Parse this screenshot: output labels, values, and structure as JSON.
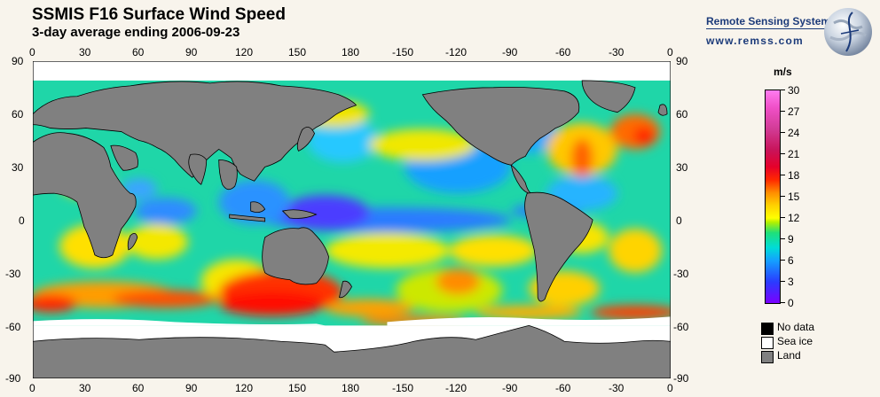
{
  "title": "SSMIS F16 Surface Wind Speed",
  "subtitle": "3-day average ending 2006-09-23",
  "branding": {
    "name": "Remote Sensing Systems",
    "url": "www.remss.com"
  },
  "lon_ticks": [
    "0",
    "30",
    "60",
    "90",
    "120",
    "150",
    "180",
    "-150",
    "-120",
    "-90",
    "-60",
    "-30",
    "0"
  ],
  "lat_ticks": [
    "90",
    "60",
    "30",
    "0",
    "-30",
    "-60",
    "-90"
  ],
  "colorbar": {
    "unit": "m/s",
    "ticks": [
      "0",
      "3",
      "6",
      "9",
      "12",
      "15",
      "18",
      "21",
      "24",
      "27",
      "30"
    ],
    "min": 0,
    "max": 30
  },
  "legend": [
    {
      "label": "No data",
      "color": "#000000"
    },
    {
      "label": "Sea ice",
      "color": "#ffffff"
    },
    {
      "label": "Land",
      "color": "#808080"
    }
  ],
  "colors": {
    "land": "#808080",
    "sea_ice": "#ffffff",
    "background": "#f8f4ec"
  }
}
